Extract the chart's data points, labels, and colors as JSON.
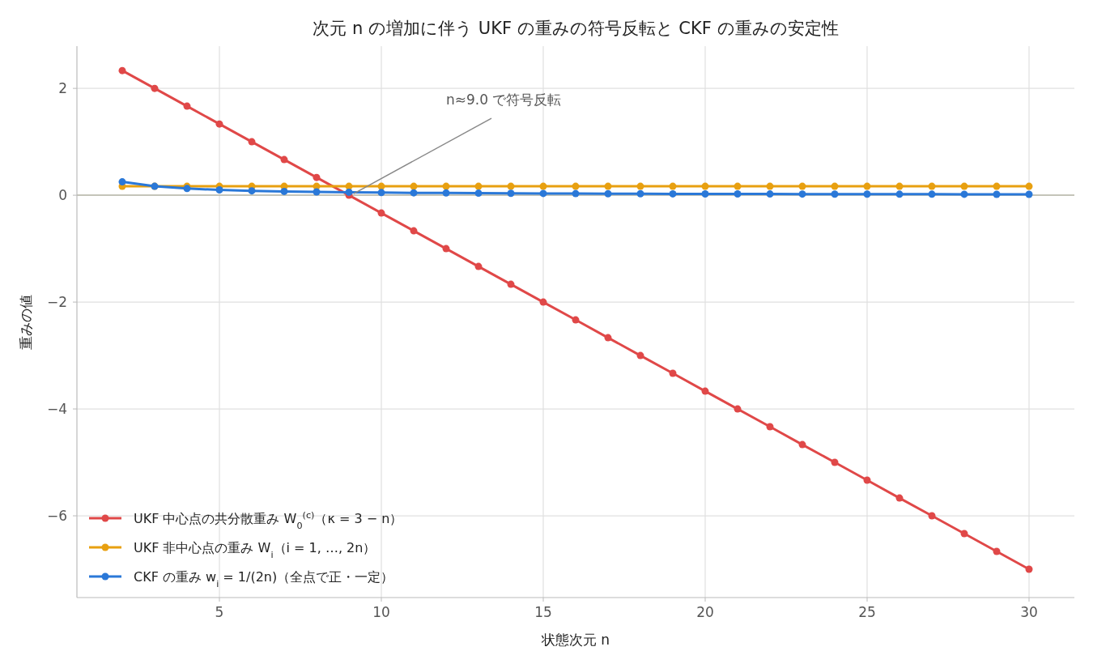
{
  "chart_data": {
    "type": "line",
    "title": "次元 n の増加に伴う UKF の重みの符号反転と CKF の重みの安定性",
    "xlabel": "状態次元 n",
    "ylabel": "重みの値",
    "x": [
      2,
      3,
      4,
      5,
      6,
      7,
      8,
      9,
      10,
      11,
      12,
      13,
      14,
      15,
      16,
      17,
      18,
      19,
      20,
      21,
      22,
      23,
      24,
      25,
      26,
      27,
      28,
      29,
      30
    ],
    "series": [
      {
        "name": "UKF 中心点の共分散重み W$_{0}$$^{(c)}$（κ = 3 − n）",
        "color": "#e04848",
        "values": [
          2.333,
          2,
          1.667,
          1.333,
          1,
          0.667,
          0.333,
          0,
          -0.333,
          -0.667,
          -1,
          -1.333,
          -1.667,
          -2,
          -2.333,
          -2.667,
          -3,
          -3.333,
          -3.667,
          -4,
          -4.333,
          -4.667,
          -5,
          -5.333,
          -5.667,
          -6,
          -6.333,
          -6.667,
          -7
        ]
      },
      {
        "name": "UKF 非中心点の重み W$_{i}$（i = 1, …, 2n）",
        "color": "#e8a010",
        "values": [
          0.167,
          0.167,
          0.167,
          0.167,
          0.167,
          0.167,
          0.167,
          0.167,
          0.167,
          0.167,
          0.167,
          0.167,
          0.167,
          0.167,
          0.167,
          0.167,
          0.167,
          0.167,
          0.167,
          0.167,
          0.167,
          0.167,
          0.167,
          0.167,
          0.167,
          0.167,
          0.167,
          0.167,
          0.167
        ]
      },
      {
        "name": "CKF の重み w$_{i}$ = 1/(2n)（全点で正・一定）",
        "color": "#2a78d8",
        "values": [
          0.25,
          0.167,
          0.125,
          0.1,
          0.083,
          0.071,
          0.063,
          0.056,
          0.05,
          0.045,
          0.042,
          0.038,
          0.036,
          0.033,
          0.031,
          0.029,
          0.028,
          0.026,
          0.025,
          0.024,
          0.023,
          0.022,
          0.021,
          0.02,
          0.019,
          0.019,
          0.018,
          0.017,
          0.017
        ]
      }
    ],
    "xlim": [
      0.6,
      31.4
    ],
    "xticks": [
      5,
      10,
      15,
      20,
      25,
      30
    ],
    "ylim": [
      -7.53,
      2.79
    ],
    "yticks": [
      {
        "value": -6,
        "label": "−6"
      },
      {
        "value": -4,
        "label": "−4"
      },
      {
        "value": -2,
        "label": "−2"
      },
      0,
      2
    ],
    "ref_lines": [
      {
        "axis": "y",
        "value": 0,
        "color": "#b8b8a8"
      }
    ],
    "annotations": [
      {
        "text": "n≈9.0 で符号反転",
        "x": 9,
        "y": 0
      }
    ],
    "grid": true,
    "legend": "bottom left",
    "marker": "circle",
    "line_style": "solid"
  }
}
